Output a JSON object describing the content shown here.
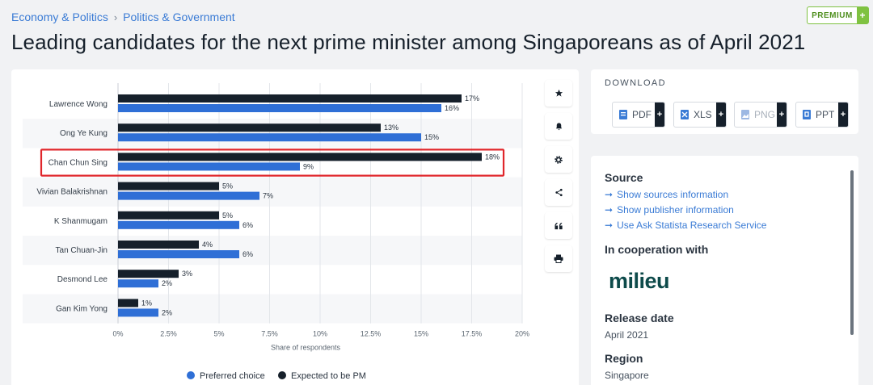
{
  "breadcrumb": {
    "item1": "Economy & Politics",
    "separator": "›",
    "item2": "Politics & Government"
  },
  "premium": {
    "label": "PREMIUM",
    "plus": "+"
  },
  "title": "Leading candidates for the next prime minister among Singaporeans as of April 2021",
  "toolbar": {
    "icons": [
      "star-icon",
      "bell-icon",
      "gear-icon",
      "share-icon",
      "quote-icon",
      "print-icon"
    ]
  },
  "download": {
    "title": "DOWNLOAD",
    "buttons": [
      {
        "label": "PDF",
        "plus": "+"
      },
      {
        "label": "XLS",
        "plus": "+"
      },
      {
        "label": "PNG",
        "plus": "+"
      },
      {
        "label": "PPT",
        "plus": "+"
      }
    ]
  },
  "info": {
    "source_heading": "Source",
    "links": [
      "Show sources information",
      "Show publisher information",
      "Use Ask Statista Research Service"
    ],
    "cooperation_heading": "In cooperation with",
    "logo_text": "milieu",
    "release_heading": "Release date",
    "release_value": "April 2021",
    "region_heading": "Region",
    "region_value": "Singapore"
  },
  "colors": {
    "preferred": "#2f6fd6",
    "expected": "#16202b",
    "highlight": "#e0262b",
    "link": "#3a7bd5"
  },
  "chart_data": {
    "type": "bar",
    "orientation": "horizontal",
    "categories": [
      "Lawrence Wong",
      "Ong Ye Kung",
      "Chan Chun Sing",
      "Vivian Balakrishnan",
      "K Shanmugam",
      "Tan Chuan-Jin",
      "Desmond Lee",
      "Gan Kim Yong"
    ],
    "series": [
      {
        "name": "Expected to be PM",
        "values": [
          17,
          13,
          18,
          5,
          5,
          4,
          3,
          1
        ]
      },
      {
        "name": "Preferred choice",
        "values": [
          16,
          15,
          9,
          7,
          6,
          6,
          2,
          2
        ]
      }
    ],
    "value_labels": {
      "Expected to be PM": [
        "17%",
        "13%",
        "18%",
        "5%",
        "5%",
        "4%",
        "3%",
        "1%"
      ],
      "Preferred choice": [
        "16%",
        "15%",
        "9%",
        "7%",
        "6%",
        "6%",
        "2%",
        "2%"
      ]
    },
    "xticks": [
      "0%",
      "2.5%",
      "5%",
      "7.5%",
      "10%",
      "12.5%",
      "15%",
      "17.5%",
      "20%"
    ],
    "xlim": [
      0,
      20
    ],
    "xlabel": "Share of respondents",
    "legend": [
      {
        "name": "Preferred choice"
      },
      {
        "name": "Expected to be PM"
      }
    ],
    "legend_position": "bottom",
    "highlighted_category": "Chan Chun Sing",
    "grid": true
  }
}
